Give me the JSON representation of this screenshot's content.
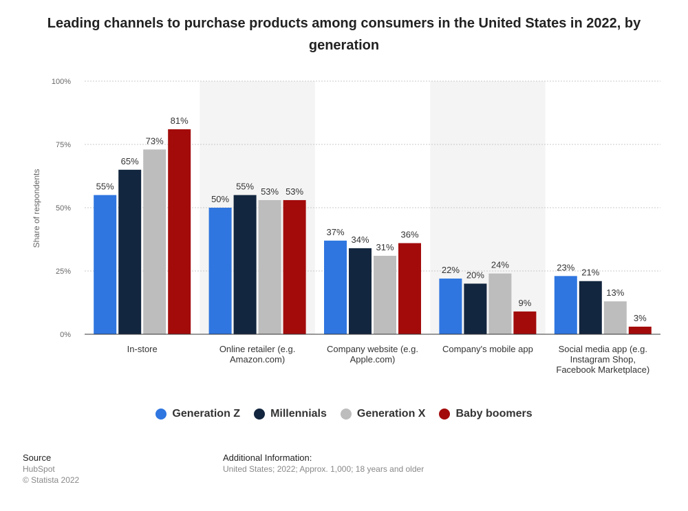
{
  "title": "Leading channels to purchase products among consumers in the United States in 2022, by generation",
  "chart_data": {
    "type": "bar",
    "title": "Leading channels to purchase products among consumers in the United States in 2022, by generation",
    "ylabel": "Share of respondents",
    "xlabel": "",
    "ylim": [
      0,
      100
    ],
    "yticks": [
      "0%",
      "25%",
      "50%",
      "75%",
      "100%"
    ],
    "ytick_values": [
      0,
      25,
      50,
      75,
      100
    ],
    "categories": [
      [
        "In-store"
      ],
      [
        "Online retailer (e.g.",
        "Amazon.com)"
      ],
      [
        "Company website (e.g.",
        "Apple.com)"
      ],
      [
        "Company's mobile app"
      ],
      [
        "Social media app (e.g.",
        "Instagram Shop,",
        "Facebook Marketplace)"
      ]
    ],
    "series": [
      {
        "name": "Generation Z",
        "color": "#2f76e0",
        "values": [
          55,
          50,
          37,
          22,
          23
        ]
      },
      {
        "name": "Millennials",
        "color": "#13263f",
        "values": [
          65,
          55,
          34,
          20,
          21
        ]
      },
      {
        "name": "Generation X",
        "color": "#bdbdbd",
        "values": [
          73,
          53,
          31,
          24,
          13
        ]
      },
      {
        "name": "Baby boomers",
        "color": "#a30b0b",
        "values": [
          81,
          53,
          36,
          9,
          3
        ]
      }
    ],
    "grid": true,
    "legend": "bottom"
  },
  "footer": {
    "source_heading": "Source",
    "source_name": "HubSpot",
    "copyright": "© Statista 2022",
    "info_heading": "Additional Information:",
    "info_text": "United States; 2022; Approx. 1,000; 18 years and older"
  }
}
